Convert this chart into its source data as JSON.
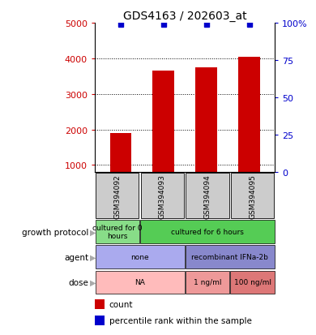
{
  "title": "GDS4163 / 202603_at",
  "samples": [
    "GSM394092",
    "GSM394093",
    "GSM394094",
    "GSM394095"
  ],
  "counts": [
    1900,
    3650,
    3750,
    4050
  ],
  "percentile_ranks": [
    99,
    99,
    99,
    99
  ],
  "ylim_left": [
    800,
    5000
  ],
  "ylim_right": [
    0,
    100
  ],
  "yticks_left": [
    1000,
    2000,
    3000,
    4000,
    5000
  ],
  "yticks_right": [
    0,
    25,
    50,
    75,
    100
  ],
  "bar_color": "#cc0000",
  "dot_color": "#0000cc",
  "bar_width": 0.5,
  "sample_box_color": "#cccccc",
  "metadata_rows": [
    {
      "label": "growth protocol",
      "cells": [
        {
          "text": "cultured for 0\nhours",
          "span": 1,
          "color": "#88dd88"
        },
        {
          "text": "cultured for 6 hours",
          "span": 3,
          "color": "#55cc55"
        }
      ]
    },
    {
      "label": "agent",
      "cells": [
        {
          "text": "none",
          "span": 2,
          "color": "#aaaaee"
        },
        {
          "text": "recombinant IFNa-2b",
          "span": 2,
          "color": "#8888cc"
        }
      ]
    },
    {
      "label": "dose",
      "cells": [
        {
          "text": "NA",
          "span": 2,
          "color": "#ffbbbb"
        },
        {
          "text": "1 ng/ml",
          "span": 1,
          "color": "#ee9999"
        },
        {
          "text": "100 ng/ml",
          "span": 1,
          "color": "#dd7777"
        }
      ]
    }
  ],
  "legend_items": [
    {
      "color": "#cc0000",
      "label": "count"
    },
    {
      "color": "#0000cc",
      "label": "percentile rank within the sample"
    }
  ]
}
